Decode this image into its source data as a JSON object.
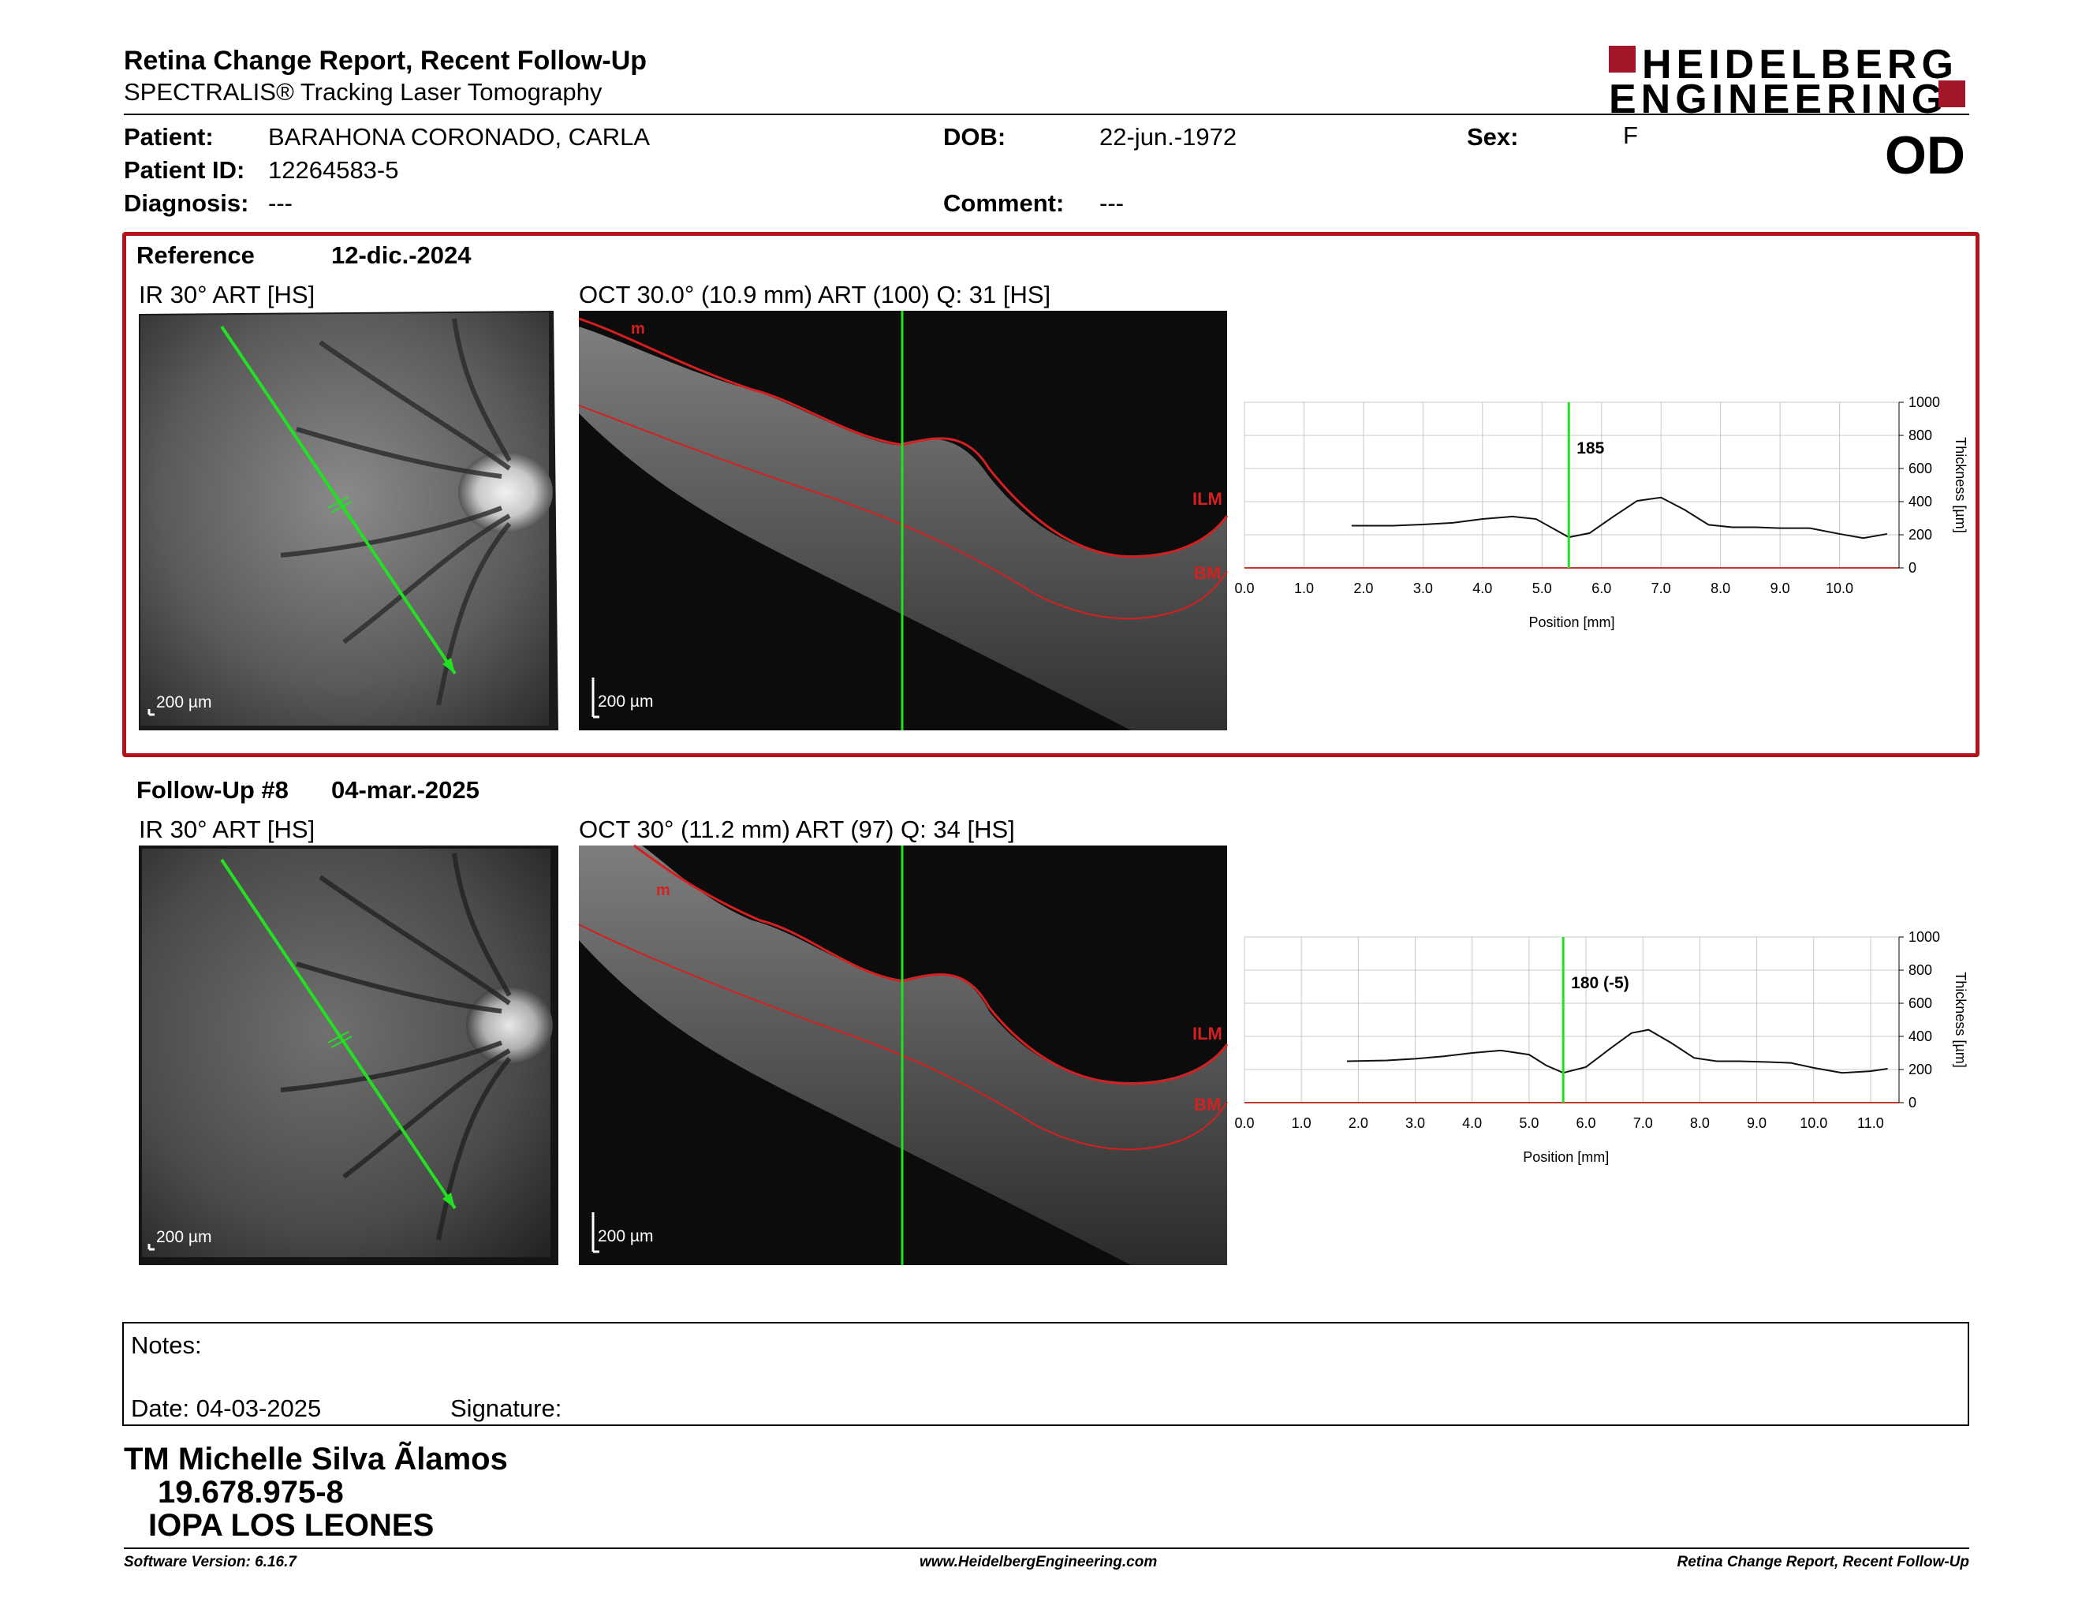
{
  "header": {
    "title": "Retina Change Report, Recent Follow-Up",
    "subtitle": "SPECTRALIS® Tracking Laser Tomography",
    "logo_line1": "HEIDELBERG",
    "logo_line2": "ENGINEERING",
    "eye": "OD"
  },
  "patient": {
    "patient_label": "Patient:",
    "patient_value": "BARAHONA CORONADO, CARLA",
    "id_label": "Patient ID:",
    "id_value": "12264583-5",
    "diagnosis_label": "Diagnosis:",
    "diagnosis_value": "---",
    "dob_label": "DOB:",
    "dob_value": "22-jun.-1972",
    "comment_label": "Comment:",
    "comment_value": "---",
    "sex_label": "Sex:",
    "sex_value": "F"
  },
  "reference": {
    "label": "Reference",
    "date": "12-dic.-2024",
    "ir_title": "IR 30° ART [HS]",
    "oct_title": "OCT 30.0° (10.9 mm) ART (100) Q: 31 [HS]",
    "ir_scale": "200 µm",
    "oct_scale": "200 µm",
    "label_ilm": "ILM",
    "label_bm": "BM",
    "label_m": "m",
    "marker_value": "185"
  },
  "followup": {
    "label": "Follow-Up #8",
    "date": "04-mar.-2025",
    "ir_title": "IR 30° ART [HS]",
    "oct_title": "OCT 30° (11.2 mm) ART (97) Q: 34 [HS]",
    "ir_scale": "200 µm",
    "oct_scale": "200 µm",
    "label_ilm": "ILM",
    "label_bm": "BM",
    "label_m": "m",
    "marker_value": "180 (-5)"
  },
  "chart_data": [
    {
      "type": "line",
      "xlabel": "Position [mm]",
      "ylabel": "Thickness [µm]",
      "xlim": [
        0,
        11
      ],
      "ylim": [
        0,
        1000
      ],
      "x_ticks": [
        "0.0",
        "1.0",
        "2.0",
        "3.0",
        "4.0",
        "5.0",
        "6.0",
        "7.0",
        "8.0",
        "9.0",
        "10.0"
      ],
      "y_ticks": [
        "0",
        "200",
        "400",
        "600",
        "800",
        "1000"
      ],
      "marker_x": 5.45,
      "marker_label": "185",
      "grid": true,
      "series": [
        {
          "x": [
            1.8,
            2.5,
            3.0,
            3.5,
            4.0,
            4.5,
            4.9,
            5.2,
            5.45,
            5.8,
            6.2,
            6.6,
            7.0,
            7.4,
            7.8,
            8.2,
            8.6,
            9.0,
            9.5,
            10.0,
            10.4,
            10.8
          ],
          "values": [
            255,
            255,
            262,
            272,
            295,
            310,
            295,
            235,
            185,
            210,
            310,
            405,
            425,
            350,
            260,
            245,
            245,
            240,
            240,
            205,
            180,
            205
          ]
        }
      ]
    },
    {
      "type": "line",
      "xlabel": "Position [mm]",
      "ylabel": "Thickness [µm]",
      "xlim": [
        0,
        11.5
      ],
      "ylim": [
        0,
        1000
      ],
      "x_ticks": [
        "0.0",
        "1.0",
        "2.0",
        "3.0",
        "4.0",
        "5.0",
        "6.0",
        "7.0",
        "8.0",
        "9.0",
        "10.0",
        "11.0"
      ],
      "y_ticks": [
        "0",
        "200",
        "400",
        "600",
        "800",
        "1000"
      ],
      "marker_x": 5.6,
      "marker_label": "180 (-5)",
      "grid": true,
      "series": [
        {
          "x": [
            1.8,
            2.5,
            3.0,
            3.5,
            4.0,
            4.5,
            5.0,
            5.3,
            5.6,
            6.0,
            6.4,
            6.8,
            7.1,
            7.5,
            7.9,
            8.3,
            8.7,
            9.2,
            9.6,
            10.0,
            10.5,
            11.0,
            11.3
          ],
          "values": [
            250,
            255,
            265,
            280,
            300,
            315,
            290,
            225,
            180,
            215,
            320,
            420,
            440,
            360,
            270,
            250,
            250,
            245,
            240,
            210,
            180,
            190,
            205
          ]
        }
      ]
    }
  ],
  "notes": {
    "label": "Notes:",
    "date_label": "Date: 04-03-2025",
    "signature_label": "Signature:"
  },
  "signatory": {
    "name": "TM Michelle Silva Ãlamos",
    "id": "19.678.975-8",
    "org": "IOPA LOS LEONES"
  },
  "footer": {
    "left": "Software Version: 6.16.7",
    "center": "www.HeidelbergEngineering.com",
    "right": "Retina Change Report, Recent Follow-Up"
  }
}
